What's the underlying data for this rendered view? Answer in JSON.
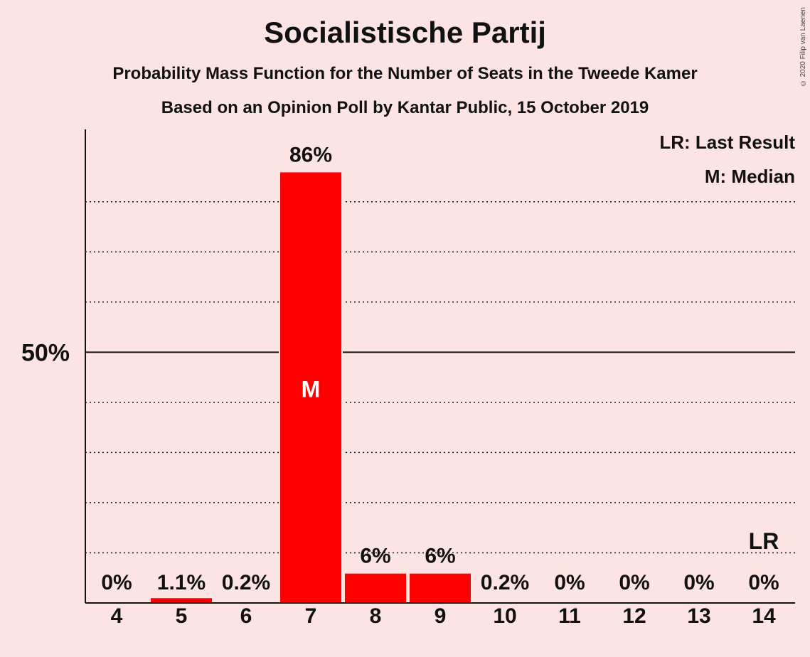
{
  "title": "Socialistische Partij",
  "subtitle": "Probability Mass Function for the Number of Seats in the Tweede Kamer",
  "subtitle2": "Based on an Opinion Poll by Kantar Public, 15 October 2019",
  "copyright": "© 2020 Filip van Laenen",
  "legend": {
    "last_result": "LR: Last Result",
    "median": "M: Median"
  },
  "colors": {
    "bar": "#ff0000",
    "background": "#fce4e5"
  },
  "chart_data": {
    "type": "bar",
    "categories": [
      "4",
      "5",
      "6",
      "7",
      "8",
      "9",
      "10",
      "11",
      "12",
      "13",
      "14"
    ],
    "values": [
      0,
      1.1,
      0.2,
      86,
      6,
      6,
      0.2,
      0,
      0,
      0,
      0
    ],
    "labels": [
      "0%",
      "1.1%",
      "0.2%",
      "86%",
      "6%",
      "6%",
      "0.2%",
      "0%",
      "0%",
      "0%",
      "0%"
    ],
    "ylim": [
      0,
      94
    ],
    "y_tick_label": "50%",
    "y_tick_value": 50,
    "grid_values": [
      10,
      20,
      30,
      40,
      60,
      70,
      80
    ],
    "median_category": "7",
    "median_marker": "M",
    "last_result_category": "14",
    "last_result_marker": "LR",
    "legend_position": "top-right"
  }
}
